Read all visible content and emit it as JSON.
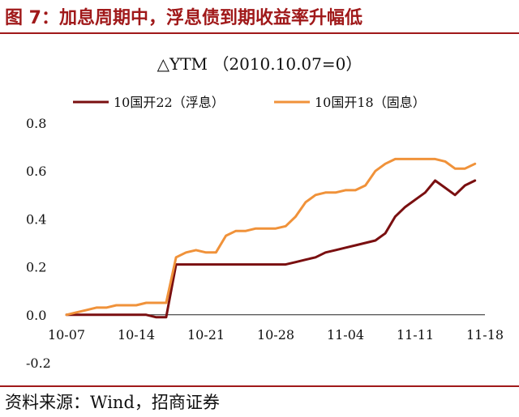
{
  "figure": {
    "title": "图 7：加息周期中，浮息债到期收益率升幅低",
    "source": "资料来源：Wind，招商证券"
  },
  "colors": {
    "brand": "#a0191a",
    "series_1": "#7a0f10",
    "series_2": "#f0923a"
  },
  "chart_data": {
    "type": "line",
    "title": "△YTM （2010.10.07=0）",
    "xlabel": "",
    "ylabel": "",
    "legend_position": "top",
    "grid": false,
    "x_ticks": [
      "10-07",
      "10-14",
      "10-21",
      "10-28",
      "11-04",
      "11-11",
      "11-18"
    ],
    "x_range": [
      0,
      42
    ],
    "y_ticks": [
      -0.2,
      0.0,
      0.2,
      0.4,
      0.6,
      0.8
    ],
    "y_tick_labels": [
      "-0.2",
      "0.0",
      "0.2",
      "0.4",
      "0.6",
      "0.8"
    ],
    "ylim": [
      -0.2,
      0.8
    ],
    "series": [
      {
        "name": "10国开22（浮息）",
        "color": "#7a0f10",
        "x": [
          0,
          1,
          2,
          3,
          4,
          5,
          6,
          7,
          8,
          9,
          10,
          11,
          12,
          13,
          14,
          15,
          16,
          17,
          18,
          19,
          20,
          21,
          22,
          23,
          24,
          25,
          26,
          27,
          28,
          29,
          30,
          31,
          32,
          33,
          34,
          35,
          36,
          37,
          38,
          39,
          40,
          41
        ],
        "values": [
          0.0,
          0.0,
          0.0,
          0.0,
          0.0,
          0.0,
          0.0,
          0.0,
          0.0,
          -0.01,
          -0.01,
          0.21,
          0.21,
          0.21,
          0.21,
          0.21,
          0.21,
          0.21,
          0.21,
          0.21,
          0.21,
          0.21,
          0.21,
          0.22,
          0.23,
          0.24,
          0.26,
          0.27,
          0.28,
          0.29,
          0.3,
          0.31,
          0.34,
          0.41,
          0.45,
          0.48,
          0.51,
          0.56,
          0.53,
          0.5,
          0.54,
          0.56
        ]
      },
      {
        "name": "10国开18（固息）",
        "color": "#f0923a",
        "x": [
          0,
          1,
          2,
          3,
          4,
          5,
          6,
          7,
          8,
          9,
          10,
          11,
          12,
          13,
          14,
          15,
          16,
          17,
          18,
          19,
          20,
          21,
          22,
          23,
          24,
          25,
          26,
          27,
          28,
          29,
          30,
          31,
          32,
          33,
          34,
          35,
          36,
          37,
          38,
          39,
          40,
          41
        ],
        "values": [
          0.0,
          0.01,
          0.02,
          0.03,
          0.03,
          0.04,
          0.04,
          0.04,
          0.05,
          0.05,
          0.05,
          0.24,
          0.26,
          0.27,
          0.26,
          0.26,
          0.33,
          0.35,
          0.35,
          0.36,
          0.36,
          0.36,
          0.37,
          0.41,
          0.47,
          0.5,
          0.51,
          0.51,
          0.52,
          0.52,
          0.54,
          0.6,
          0.63,
          0.65,
          0.65,
          0.65,
          0.65,
          0.65,
          0.64,
          0.61,
          0.61,
          0.63
        ]
      }
    ]
  }
}
